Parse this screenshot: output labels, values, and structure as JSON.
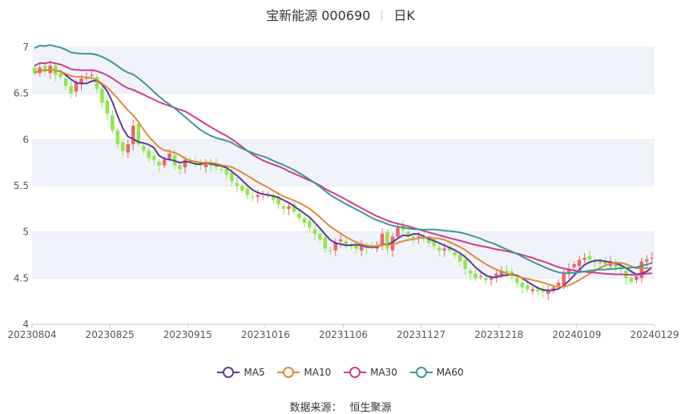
{
  "header": {
    "title": "宝新能源 000690",
    "period": "日K"
  },
  "source": {
    "label": "数据来源：",
    "value": "恒生聚源"
  },
  "colors": {
    "up": "#ee6666",
    "down": "#8ee84a",
    "band": "#f1f3fa",
    "grid": "#e6e8f0",
    "MA5": "#5b3a9e",
    "MA10": "#e0893a",
    "MA30": "#cc3f8a",
    "MA60": "#3f9698"
  },
  "chart_data": {
    "type": "candlestick",
    "ylim": [
      4,
      7
    ],
    "yticks": [
      "4",
      "4.5",
      "5",
      "5.5",
      "6",
      "6.5",
      "7"
    ],
    "xticks": [
      "20230804",
      "20230825",
      "20230915",
      "20231016",
      "20231106",
      "20231127",
      "20231218",
      "20240109",
      "20240129"
    ],
    "close": [
      6.72,
      6.78,
      6.74,
      6.8,
      6.7,
      6.68,
      6.58,
      6.5,
      6.62,
      6.66,
      6.68,
      6.7,
      6.55,
      6.4,
      6.28,
      6.1,
      5.95,
      5.88,
      5.95,
      6.15,
      5.95,
      5.88,
      5.8,
      5.78,
      5.72,
      5.78,
      5.85,
      5.72,
      5.68,
      5.78,
      5.75,
      5.74,
      5.72,
      5.75,
      5.72,
      5.7,
      5.68,
      5.62,
      5.55,
      5.5,
      5.45,
      5.4,
      5.38,
      5.4,
      5.42,
      5.4,
      5.35,
      5.3,
      5.25,
      5.28,
      5.22,
      5.15,
      5.1,
      5.05,
      4.98,
      4.92,
      4.82,
      4.8,
      4.88,
      4.92,
      4.85,
      4.84,
      4.82,
      4.85,
      4.83,
      4.84,
      4.85,
      4.98,
      4.82,
      4.95,
      5.05,
      5.02,
      4.95,
      4.92,
      4.95,
      4.92,
      4.88,
      4.85,
      4.8,
      4.82,
      4.8,
      4.75,
      4.68,
      4.6,
      4.55,
      4.5,
      4.52,
      4.48,
      4.5,
      4.55,
      4.58,
      4.55,
      4.52,
      4.45,
      4.4,
      4.38,
      4.38,
      4.36,
      4.35,
      4.36,
      4.4,
      4.45,
      4.55,
      4.6,
      4.65,
      4.7,
      4.72,
      4.7,
      4.68,
      4.66,
      4.65,
      4.68,
      4.62,
      4.6,
      4.5,
      4.46,
      4.52,
      4.68,
      4.7,
      4.72
    ],
    "series": [
      {
        "name": "MA5",
        "values": []
      },
      {
        "name": "MA10",
        "values": []
      },
      {
        "name": "MA30",
        "values": []
      },
      {
        "name": "MA60",
        "values": []
      }
    ]
  }
}
